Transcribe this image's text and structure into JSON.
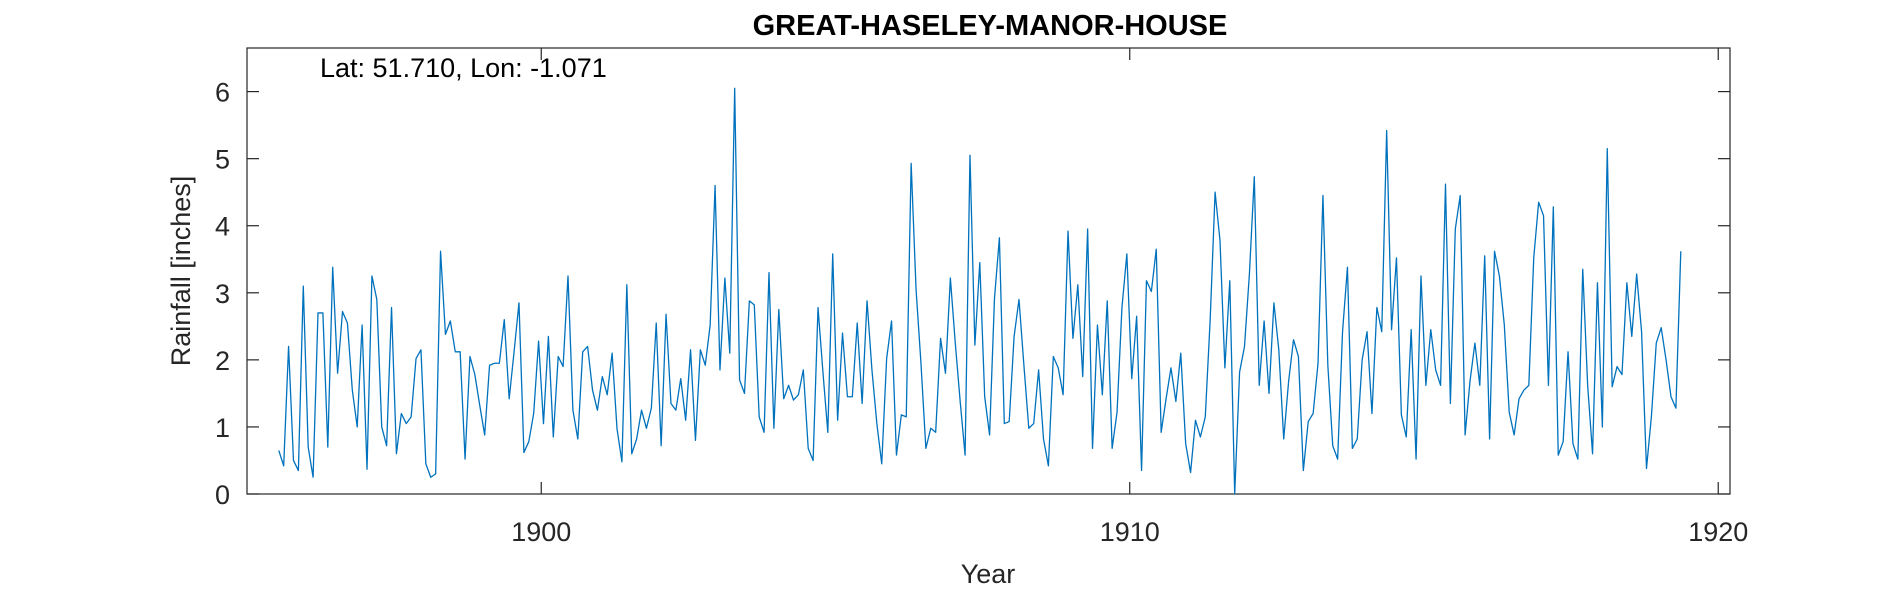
{
  "chart_data": {
    "type": "line",
    "title": "GREAT-HASELEY-MANOR-HOUSE",
    "annotation": "Lat: 51.710, Lon: -1.071",
    "xlabel": "Year",
    "ylabel": "Rainfall [inches]",
    "xlim": [
      1895,
      1920.2
    ],
    "ylim": [
      0,
      6.65
    ],
    "xticks": [
      1900,
      1910,
      1920
    ],
    "yticks": [
      0,
      1,
      2,
      3,
      4,
      5,
      6
    ],
    "grid": false,
    "line_color": "#0072BD",
    "x_start_year": 1895.54,
    "x_step_years": 0.0833,
    "values": [
      0.65,
      0.42,
      2.2,
      0.5,
      0.35,
      3.1,
      0.7,
      0.25,
      2.7,
      2.7,
      0.7,
      3.38,
      1.8,
      2.72,
      2.55,
      1.55,
      1.0,
      2.52,
      0.37,
      3.25,
      2.9,
      1.0,
      0.72,
      2.78,
      0.6,
      1.2,
      1.05,
      1.15,
      2.02,
      2.15,
      0.45,
      0.25,
      0.3,
      3.62,
      2.38,
      2.58,
      2.12,
      2.12,
      0.52,
      2.05,
      1.78,
      1.32,
      0.88,
      1.92,
      1.95,
      1.95,
      2.6,
      1.42,
      2.12,
      2.85,
      0.62,
      0.78,
      1.2,
      2.28,
      1.05,
      2.35,
      0.85,
      2.05,
      1.9,
      3.25,
      1.25,
      0.82,
      2.12,
      2.2,
      1.55,
      1.25,
      1.75,
      1.48,
      2.1,
      0.97,
      0.48,
      3.12,
      0.6,
      0.82,
      1.25,
      0.98,
      1.28,
      2.55,
      0.72,
      2.68,
      1.35,
      1.25,
      1.72,
      1.1,
      2.15,
      0.8,
      2.15,
      1.92,
      2.52,
      4.6,
      1.85,
      3.22,
      2.1,
      6.05,
      1.7,
      1.5,
      2.88,
      2.82,
      1.15,
      0.92,
      3.3,
      0.98,
      2.75,
      1.42,
      1.62,
      1.4,
      1.48,
      1.85,
      0.68,
      0.5,
      2.78,
      1.82,
      0.92,
      3.58,
      1.1,
      2.4,
      1.45,
      1.45,
      2.55,
      1.35,
      2.88,
      1.85,
      1.05,
      0.45,
      2.02,
      2.58,
      0.58,
      1.18,
      1.15,
      4.93,
      3.05,
      1.95,
      0.68,
      0.98,
      0.92,
      2.32,
      1.8,
      3.22,
      2.25,
      1.38,
      0.58,
      5.05,
      2.22,
      3.45,
      1.45,
      0.88,
      2.92,
      3.82,
      1.05,
      1.08,
      2.35,
      2.9,
      1.92,
      0.98,
      1.05,
      1.85,
      0.82,
      0.42,
      2.05,
      1.88,
      1.48,
      3.92,
      2.32,
      3.12,
      1.75,
      3.95,
      0.68,
      2.52,
      1.48,
      2.88,
      0.68,
      1.22,
      2.78,
      3.58,
      1.72,
      2.65,
      0.35,
      3.18,
      3.02,
      3.65,
      0.92,
      1.42,
      1.88,
      1.38,
      2.1,
      0.75,
      0.32,
      1.1,
      0.85,
      1.15,
      2.6,
      4.5,
      3.78,
      1.88,
      3.18,
      0.0,
      1.82,
      2.2,
      3.28,
      4.73,
      1.62,
      2.58,
      1.5,
      2.85,
      2.15,
      0.82,
      1.68,
      2.3,
      2.05,
      0.35,
      1.08,
      1.2,
      1.95,
      4.45,
      1.92,
      0.72,
      0.52,
      2.42,
      3.38,
      0.68,
      0.82,
      2.0,
      2.42,
      1.2,
      2.78,
      2.42,
      5.42,
      2.45,
      3.52,
      1.18,
      0.85,
      2.45,
      0.52,
      3.25,
      1.62,
      2.45,
      1.85,
      1.62,
      4.62,
      1.35,
      3.95,
      4.45,
      0.88,
      1.68,
      2.25,
      1.62,
      3.55,
      0.82,
      3.62,
      3.25,
      2.52,
      1.22,
      0.88,
      1.42,
      1.55,
      1.62,
      3.52,
      4.35,
      4.15,
      1.62,
      4.28,
      0.58,
      0.78,
      2.12,
      0.75,
      0.52,
      3.35,
      1.62,
      0.6,
      3.15,
      1.0,
      5.15,
      1.6,
      1.9,
      1.78,
      3.15,
      2.35,
      3.28,
      2.42,
      0.38,
      1.15,
      2.25,
      2.48,
      2.0,
      1.45,
      1.28,
      3.62
    ]
  }
}
